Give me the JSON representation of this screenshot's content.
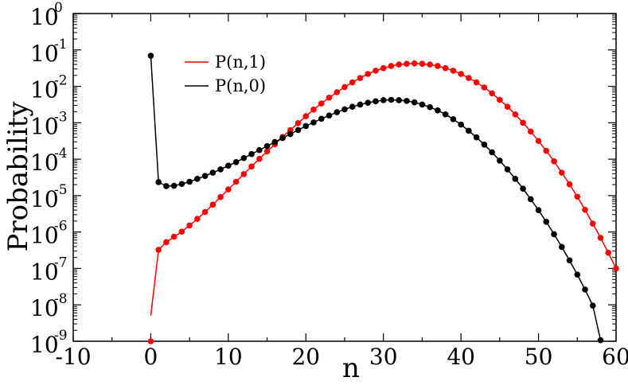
{
  "chart_data": {
    "type": "line",
    "title": "",
    "xlabel": "n",
    "ylabel": "Probability",
    "y_scale": "log",
    "xlim": [
      -10,
      60
    ],
    "ylim_exponent": [
      -9,
      0
    ],
    "x_ticks": [
      "-10",
      "0",
      "10",
      "20",
      "30",
      "40",
      "50",
      "60"
    ],
    "y_ticks": [
      {
        "base": "10",
        "exp": "0"
      },
      {
        "base": "10",
        "exp": "-1"
      },
      {
        "base": "10",
        "exp": "-2"
      },
      {
        "base": "10",
        "exp": "-3"
      },
      {
        "base": "10",
        "exp": "-4"
      },
      {
        "base": "10",
        "exp": "-5"
      },
      {
        "base": "10",
        "exp": "-6"
      },
      {
        "base": "10",
        "exp": "-7"
      },
      {
        "base": "10",
        "exp": "-8"
      },
      {
        "base": "10",
        "exp": "-9"
      }
    ],
    "legend_position": "top-left",
    "series": [
      {
        "name": "P(n,1)",
        "color": "#ff0000",
        "line_start_log10": -8.3,
        "x": [
          0,
          1,
          2,
          3,
          4,
          5,
          6,
          7,
          8,
          9,
          10,
          11,
          12,
          13,
          14,
          15,
          16,
          17,
          18,
          19,
          20,
          21,
          22,
          23,
          24,
          25,
          26,
          27,
          28,
          29,
          30,
          31,
          32,
          33,
          34,
          35,
          36,
          37,
          38,
          39,
          40,
          41,
          42,
          43,
          44,
          45,
          46,
          47,
          48,
          49,
          50,
          51,
          52,
          53,
          54,
          55,
          56,
          57,
          58,
          59,
          60
        ],
        "log10_values": [
          -9,
          -6.49,
          -6.28,
          -6.13,
          -5.99,
          -5.82,
          -5.64,
          -5.45,
          -5.25,
          -5.04,
          -4.83,
          -4.62,
          -4.41,
          -4.2,
          -3.99,
          -3.79,
          -3.59,
          -3.39,
          -3.2,
          -3.01,
          -2.82,
          -2.64,
          -2.47,
          -2.31,
          -2.16,
          -2.02,
          -1.89,
          -1.77,
          -1.66,
          -1.57,
          -1.5,
          -1.44,
          -1.4,
          -1.38,
          -1.37,
          -1.38,
          -1.4,
          -1.44,
          -1.5,
          -1.57,
          -1.66,
          -1.77,
          -1.89,
          -2.03,
          -2.19,
          -2.37,
          -2.56,
          -2.77,
          -3.0,
          -3.24,
          -3.5,
          -3.77,
          -4.06,
          -4.37,
          -4.69,
          -5.03,
          -5.39,
          -5.77,
          -6.16,
          -6.57,
          -7.0
        ]
      },
      {
        "name": "P(n,0)",
        "color": "#000000",
        "x": [
          0,
          1,
          2,
          3,
          4,
          5,
          6,
          7,
          8,
          9,
          10,
          11,
          12,
          13,
          14,
          15,
          16,
          17,
          18,
          19,
          20,
          21,
          22,
          23,
          24,
          25,
          26,
          27,
          28,
          29,
          30,
          31,
          32,
          33,
          34,
          35,
          36,
          37,
          38,
          39,
          40,
          41,
          42,
          43,
          44,
          45,
          46,
          47,
          48,
          49,
          50,
          51,
          52,
          53,
          54,
          55,
          56,
          57,
          58
        ],
        "log10_values": [
          -1.16,
          -4.63,
          -4.74,
          -4.73,
          -4.68,
          -4.62,
          -4.54,
          -4.46,
          -4.37,
          -4.28,
          -4.18,
          -4.08,
          -3.97,
          -3.86,
          -3.75,
          -3.64,
          -3.53,
          -3.42,
          -3.31,
          -3.2,
          -3.09,
          -2.99,
          -2.89,
          -2.8,
          -2.71,
          -2.63,
          -2.56,
          -2.5,
          -2.45,
          -2.41,
          -2.38,
          -2.37,
          -2.38,
          -2.4,
          -2.44,
          -2.5,
          -2.57,
          -2.66,
          -2.77,
          -2.9,
          -3.05,
          -3.22,
          -3.4,
          -3.6,
          -3.81,
          -4.04,
          -4.28,
          -4.54,
          -4.81,
          -5.1,
          -5.4,
          -5.72,
          -6.06,
          -6.41,
          -6.78,
          -7.17,
          -7.58,
          -8.02,
          -8.97
        ]
      }
    ]
  }
}
